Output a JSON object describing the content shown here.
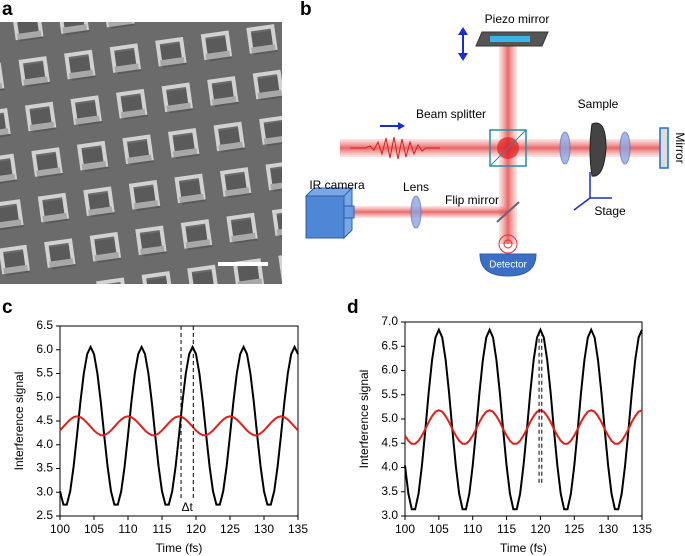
{
  "panel_labels": {
    "a": "a",
    "b": "b"
  },
  "diagram": {
    "piezo_mirror": "Piezo mirror",
    "beam_splitter": "Beam splitter",
    "sample": "Sample",
    "mirror": "Mirror",
    "ir_camera": "IR camera",
    "lens": "Lens",
    "flip_mirror": "Flip mirror",
    "stage": "Stage",
    "detector": "Detector"
  },
  "chart_data": [
    {
      "type": "line",
      "panel": "c",
      "xlabel": "Time (fs)",
      "ylabel": "Interference signal",
      "annotation": "Δt",
      "dashed_lines": [
        117.8,
        119.6
      ],
      "xlim": [
        100,
        135
      ],
      "xticks": [
        100,
        105,
        110,
        115,
        120,
        125,
        130,
        135
      ],
      "ylim": [
        2.5,
        6.5
      ],
      "yticks": [
        2.5,
        {
          "value": 3,
          "label": "3.0"
        },
        3.5,
        {
          "value": 4,
          "label": "4.0"
        },
        4.5,
        {
          "value": 5,
          "label": "5.0"
        },
        5.5,
        {
          "value": 6,
          "label": "6.0"
        },
        6.5
      ],
      "x": [
        100,
        100.5,
        101,
        101.5,
        102,
        102.5,
        103,
        103.5,
        104,
        104.5,
        105,
        105.5,
        106,
        106.5,
        107,
        107.5,
        108,
        108.5,
        109,
        109.5,
        110,
        110.5,
        111,
        111.5,
        112,
        112.5,
        113,
        113.5,
        114,
        114.5,
        115,
        115.5,
        116,
        116.5,
        117,
        117.5,
        118,
        118.5,
        119,
        119.5,
        120,
        120.5,
        121,
        121.5,
        122,
        122.5,
        123,
        123.5,
        124,
        124.5,
        125,
        125.5,
        126,
        126.5,
        127,
        127.5,
        128,
        128.5,
        129,
        129.5,
        130,
        130.5,
        131,
        131.5,
        132,
        132.5,
        133,
        133.5,
        134,
        134.5,
        135
      ],
      "series": [
        {
          "color": "#000000",
          "values": [
            3.02,
            2.74,
            2.74,
            3.02,
            3.54,
            4.2,
            4.9,
            5.5,
            5.91,
            6.06,
            5.91,
            5.5,
            4.9,
            4.2,
            3.54,
            3.02,
            2.74,
            2.74,
            3.02,
            3.54,
            4.2,
            4.9,
            5.5,
            5.91,
            6.06,
            5.91,
            5.5,
            4.9,
            4.2,
            3.54,
            3.02,
            2.74,
            2.74,
            3.02,
            3.54,
            4.2,
            4.9,
            5.5,
            5.91,
            6.06,
            5.91,
            5.5,
            4.9,
            4.2,
            3.54,
            3.02,
            2.74,
            2.74,
            3.02,
            3.54,
            4.2,
            4.9,
            5.5,
            5.91,
            6.06,
            5.91,
            5.5,
            4.9,
            4.2,
            3.54,
            3.02,
            2.74,
            2.74,
            3.02,
            3.54,
            4.2,
            4.9,
            5.5,
            5.91,
            6.06,
            5.91
          ]
        },
        {
          "color": "#e0201b",
          "values": [
            4.3,
            4.38,
            4.46,
            4.53,
            4.58,
            4.6,
            4.58,
            4.53,
            4.46,
            4.38,
            4.3,
            4.24,
            4.2,
            4.2,
            4.24,
            4.3,
            4.38,
            4.46,
            4.53,
            4.58,
            4.6,
            4.58,
            4.53,
            4.46,
            4.38,
            4.3,
            4.24,
            4.2,
            4.2,
            4.24,
            4.3,
            4.38,
            4.46,
            4.53,
            4.58,
            4.6,
            4.58,
            4.53,
            4.46,
            4.38,
            4.3,
            4.24,
            4.2,
            4.2,
            4.24,
            4.3,
            4.38,
            4.46,
            4.53,
            4.58,
            4.6,
            4.58,
            4.53,
            4.46,
            4.38,
            4.3,
            4.24,
            4.2,
            4.2,
            4.24,
            4.3,
            4.38,
            4.46,
            4.53,
            4.58,
            4.6,
            4.58,
            4.53,
            4.46,
            4.38,
            4.3
          ]
        }
      ]
    },
    {
      "type": "line",
      "panel": "d",
      "xlabel": "Time (fs)",
      "ylabel": "Interference signal",
      "dashed_lines": [
        119.8,
        120.2
      ],
      "xlim": [
        100,
        135
      ],
      "xticks": [
        100,
        105,
        110,
        115,
        120,
        125,
        130,
        135
      ],
      "ylim": [
        3,
        7
      ],
      "yticks": [
        {
          "value": 3,
          "label": "3.0"
        },
        3.5,
        {
          "value": 4,
          "label": "4.0"
        },
        4.5,
        {
          "value": 5,
          "label": "5.0"
        },
        5.5,
        {
          "value": 6,
          "label": "6.0"
        },
        6.5,
        {
          "value": 7,
          "label": "7.0"
        }
      ],
      "x": [
        100,
        100.5,
        101,
        101.5,
        102,
        102.5,
        103,
        103.5,
        104,
        104.5,
        105,
        105.5,
        106,
        106.5,
        107,
        107.5,
        108,
        108.5,
        109,
        109.5,
        110,
        110.5,
        111,
        111.5,
        112,
        112.5,
        113,
        113.5,
        114,
        114.5,
        115,
        115.5,
        116,
        116.5,
        117,
        117.5,
        118,
        118.5,
        119,
        119.5,
        120,
        120.5,
        121,
        121.5,
        122,
        122.5,
        123,
        123.5,
        124,
        124.5,
        125,
        125.5,
        126,
        126.5,
        127,
        127.5,
        128,
        128.5,
        129,
        129.5,
        130,
        130.5,
        131,
        131.5,
        132,
        132.5,
        133,
        133.5,
        134,
        134.5,
        135
      ],
      "series": [
        {
          "color": "#000000",
          "values": [
            4.04,
            3.46,
            3.14,
            3.14,
            3.46,
            4.04,
            4.77,
            5.55,
            6.22,
            6.68,
            6.84,
            6.68,
            6.22,
            5.55,
            4.77,
            4.04,
            3.46,
            3.14,
            3.14,
            3.46,
            4.04,
            4.77,
            5.55,
            6.22,
            6.68,
            6.84,
            6.68,
            6.22,
            5.55,
            4.77,
            4.04,
            3.46,
            3.14,
            3.14,
            3.46,
            4.04,
            4.77,
            5.55,
            6.22,
            6.68,
            6.84,
            6.68,
            6.22,
            5.55,
            4.77,
            4.04,
            3.46,
            3.14,
            3.14,
            3.46,
            4.04,
            4.77,
            5.55,
            6.22,
            6.68,
            6.84,
            6.68,
            6.22,
            5.55,
            4.77,
            4.04,
            3.46,
            3.14,
            3.14,
            3.46,
            4.04,
            4.77,
            5.55,
            6.22,
            6.68,
            6.84
          ]
        },
        {
          "color": "#e0201b",
          "values": [
            4.66,
            4.55,
            4.49,
            4.49,
            4.55,
            4.66,
            4.79,
            4.94,
            5.06,
            5.15,
            5.18,
            5.15,
            5.06,
            4.94,
            4.79,
            4.66,
            4.55,
            4.49,
            4.49,
            4.55,
            4.66,
            4.79,
            4.94,
            5.06,
            5.15,
            5.18,
            5.15,
            5.06,
            4.94,
            4.79,
            4.66,
            4.55,
            4.49,
            4.49,
            4.55,
            4.66,
            4.79,
            4.94,
            5.06,
            5.15,
            5.18,
            5.15,
            5.06,
            4.94,
            4.79,
            4.66,
            4.55,
            4.49,
            4.49,
            4.55,
            4.66,
            4.79,
            4.94,
            5.06,
            5.15,
            5.18,
            5.15,
            5.06,
            4.94,
            4.79,
            4.66,
            4.55,
            4.49,
            4.49,
            4.55,
            4.66,
            4.79,
            4.94,
            5.06,
            5.15,
            5.18
          ]
        }
      ]
    }
  ]
}
